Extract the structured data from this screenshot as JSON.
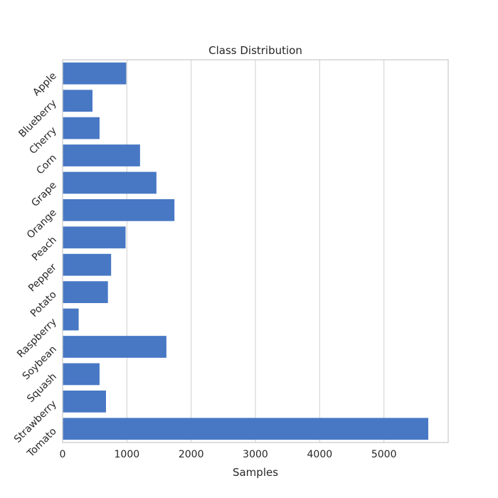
{
  "chart_data": {
    "type": "bar",
    "orientation": "horizontal",
    "title": "Class Distribution",
    "xlabel": "Samples",
    "ylabel": "",
    "xlim": [
      0,
      6000
    ],
    "xticks": [
      0,
      1000,
      2000,
      3000,
      4000,
      5000
    ],
    "grid": "vertical",
    "categories": [
      "Apple",
      "Blueberry",
      "Cherry",
      "Corn",
      "Grape",
      "Orange",
      "Peach",
      "Pepper",
      "Potato",
      "Raspberry",
      "Soybean",
      "Squash",
      "Strawberry",
      "Tomato"
    ],
    "values": [
      990,
      465,
      575,
      1205,
      1460,
      1740,
      980,
      755,
      705,
      250,
      1615,
      575,
      675,
      5690
    ],
    "bar_color": "#4878c4"
  }
}
